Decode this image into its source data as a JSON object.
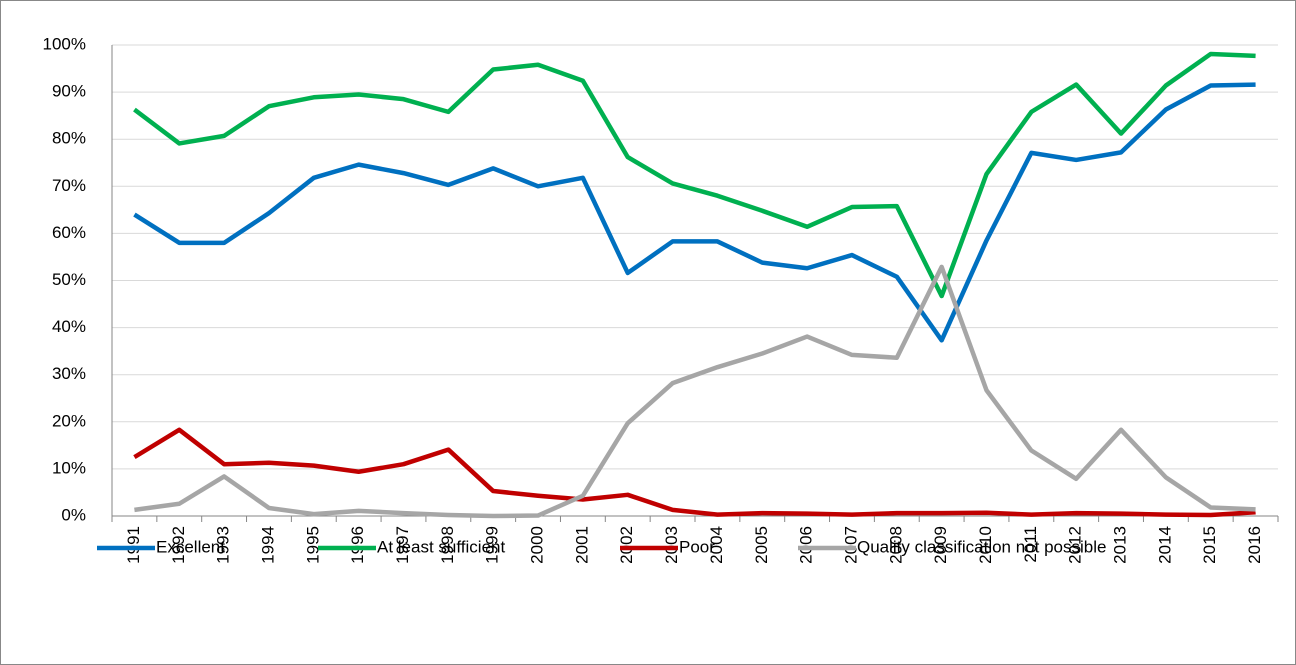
{
  "chart_data": {
    "type": "line",
    "categories": [
      "1991",
      "1992",
      "1993",
      "1994",
      "1995",
      "1996",
      "1997",
      "1998",
      "1999",
      "2000",
      "2001",
      "2002",
      "2003",
      "2004",
      "2005",
      "2006",
      "2007",
      "2008",
      "2009",
      "2010",
      "2011",
      "2012",
      "2013",
      "2014",
      "2015",
      "2016"
    ],
    "series": [
      {
        "name": "Excellent",
        "color": "#0070c0",
        "values": [
          64,
          58,
          58,
          64.3,
          71.8,
          74.6,
          72.8,
          70.3,
          73.8,
          70,
          71.8,
          51.6,
          58.3,
          58.3,
          53.8,
          52.6,
          55.4,
          50.8,
          37.3,
          58.5,
          77.1,
          75.6,
          77.2,
          86.3,
          91.4,
          91.6
        ]
      },
      {
        "name": "At least sufficient",
        "color": "#00b050",
        "values": [
          86.3,
          79.1,
          80.7,
          87,
          88.9,
          89.5,
          88.5,
          85.8,
          94.8,
          95.8,
          92.4,
          76.2,
          70.6,
          68,
          64.8,
          61.4,
          65.6,
          65.8,
          46.7,
          72.6,
          85.8,
          91.6,
          81.2,
          91.4,
          98.1,
          97.7
        ]
      },
      {
        "name": "Poor",
        "color": "#c00000",
        "values": [
          12.5,
          18.3,
          11,
          11.3,
          10.7,
          9.4,
          11,
          14.1,
          5.3,
          4.3,
          3.5,
          4.5,
          1.3,
          0.3,
          0.6,
          0.5,
          0.3,
          0.6,
          0.6,
          0.7,
          0.3,
          0.6,
          0.5,
          0.3,
          0.2,
          0.8
        ]
      },
      {
        "name": "Quality classification not possible",
        "color": "#a6a6a6",
        "values": [
          1.3,
          2.6,
          8.4,
          1.7,
          0.4,
          1.1,
          0.6,
          0.2,
          0,
          0.1,
          4.3,
          19.7,
          28.2,
          31.6,
          34.5,
          38.1,
          34.2,
          33.6,
          52.9,
          26.7,
          13.9,
          7.9,
          18.3,
          8.2,
          1.8,
          1.4
        ]
      }
    ],
    "ylim": [
      0,
      100
    ],
    "yticks": [
      {
        "value": 0,
        "label": "0%"
      },
      {
        "value": 10,
        "label": "10%"
      },
      {
        "value": 20,
        "label": "20%"
      },
      {
        "value": 30,
        "label": "30%"
      },
      {
        "value": 40,
        "label": "40%"
      },
      {
        "value": 50,
        "label": "50%"
      },
      {
        "value": 60,
        "label": "60%"
      },
      {
        "value": 70,
        "label": "70%"
      },
      {
        "value": 80,
        "label": "80%"
      },
      {
        "value": 90,
        "label": "90%"
      },
      {
        "value": 100,
        "label": "100%"
      }
    ],
    "grid": true,
    "legend": "bottom"
  }
}
